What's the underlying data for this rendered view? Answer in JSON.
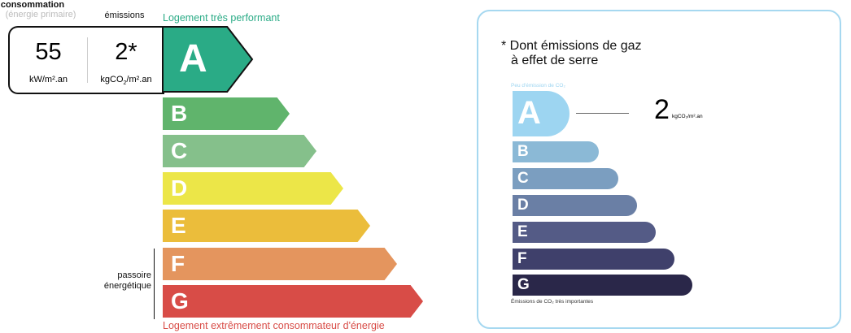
{
  "left": {
    "consumption_title": "consommation",
    "consumption_subtitle": "(énergie primaire)",
    "emissions_title": "émissions",
    "consumption_value": "55",
    "consumption_unit": "kW/m².an",
    "emissions_value": "2*",
    "emissions_unit_pre": "kgCO",
    "emissions_unit_sub": "2",
    "emissions_unit_post": "/m².an",
    "top_label": "Logement très performant",
    "bottom_label": "Logement extrêmement consommateur d'énergie",
    "passoire_label_1": "passoire",
    "passoire_label_2": "énergétique",
    "current_class": "A",
    "classes": [
      {
        "letter": "A",
        "color": "#2aab86"
      },
      {
        "letter": "B",
        "color": "#60b46c"
      },
      {
        "letter": "C",
        "color": "#85c08b"
      },
      {
        "letter": "D",
        "color": "#ece648"
      },
      {
        "letter": "E",
        "color": "#ebbd3b"
      },
      {
        "letter": "F",
        "color": "#e4955e"
      },
      {
        "letter": "G",
        "color": "#d84c47"
      }
    ],
    "top_color": "#2aab86",
    "bottom_color": "#d84c47"
  },
  "right": {
    "title_line1": "* Dont émissions de gaz",
    "title_line2": "à effet de serre",
    "top_note": "Peu d'émission de CO₂",
    "bottom_note": "Émissions de CO₂ très importantes",
    "value": "2",
    "unit": "kgCO₂/m².an",
    "current_class": "A",
    "border_color": "#a6d8f0",
    "classes": [
      {
        "letter": "A",
        "color": "#9dd5f1"
      },
      {
        "letter": "B",
        "color": "#8bb9d6"
      },
      {
        "letter": "C",
        "color": "#7b9ec0"
      },
      {
        "letter": "D",
        "color": "#6a7fa5"
      },
      {
        "letter": "E",
        "color": "#545b86"
      },
      {
        "letter": "F",
        "color": "#3f406b"
      },
      {
        "letter": "G",
        "color": "#2a2749"
      }
    ]
  }
}
